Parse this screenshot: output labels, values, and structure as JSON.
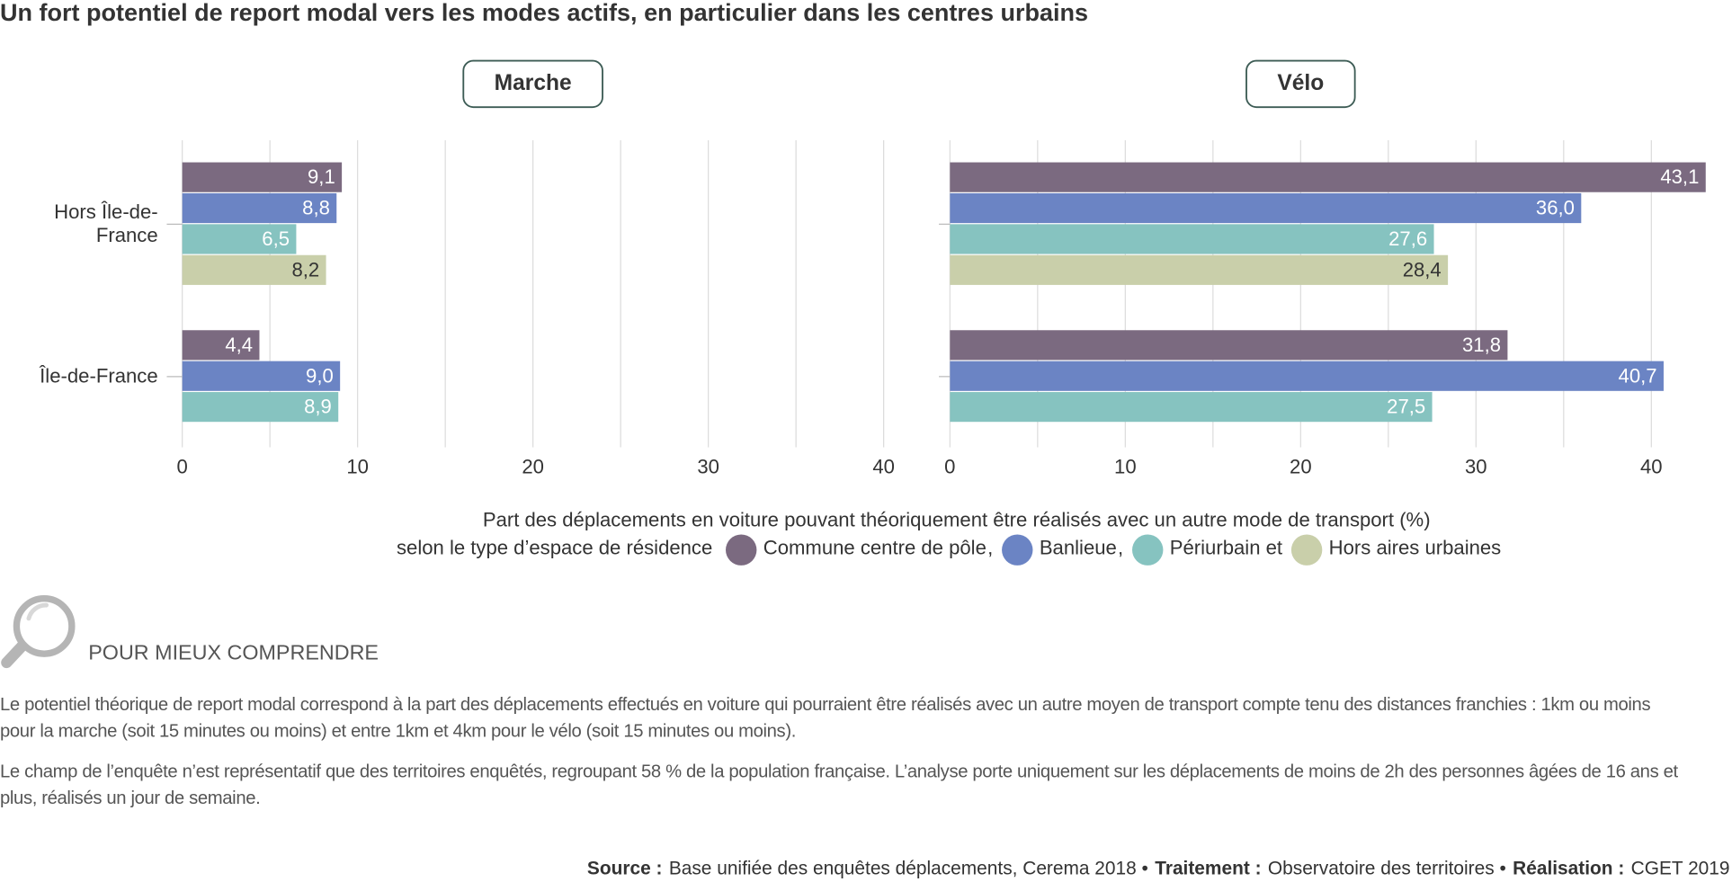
{
  "title": "Un fort potentiel de report modal vers les modes actifs, en particulier dans les centres urbains",
  "chart_data": [
    {
      "type": "bar",
      "orientation": "horizontal",
      "panel_title": "Marche",
      "categories": [
        "Hors Île-de-France",
        "Île-de-France"
      ],
      "series": [
        {
          "name": "Commune centre de pôle",
          "color": "#7b6a80",
          "values": [
            9.1,
            4.4
          ],
          "value_labels": [
            "9,1",
            "4,4"
          ]
        },
        {
          "name": "Banlieue",
          "color": "#6b84c4",
          "values": [
            8.8,
            9.0
          ],
          "value_labels": [
            "8,8",
            "9,0"
          ]
        },
        {
          "name": "Périurbain",
          "color": "#86c3c0",
          "values": [
            6.5,
            8.9
          ],
          "value_labels": [
            "6,5",
            "8,9"
          ]
        },
        {
          "name": "Hors aires urbaines",
          "color": "#c9cfaa",
          "values": [
            8.2,
            null
          ],
          "value_labels": [
            "8,2",
            null
          ]
        }
      ],
      "xlim": [
        0,
        40
      ],
      "xticks": [
        0,
        10,
        20,
        30,
        40
      ],
      "xminor": [
        5,
        15,
        25,
        35
      ],
      "grid": true
    },
    {
      "type": "bar",
      "orientation": "horizontal",
      "panel_title": "Vélo",
      "categories": [
        "Hors Île-de-France",
        "Île-de-France"
      ],
      "series": [
        {
          "name": "Commune centre de pôle",
          "color": "#7b6a80",
          "values": [
            43.1,
            31.8
          ],
          "value_labels": [
            "43,1",
            "31,8"
          ]
        },
        {
          "name": "Banlieue",
          "color": "#6b84c4",
          "values": [
            36.0,
            40.7
          ],
          "value_labels": [
            "36,0",
            "40,7"
          ]
        },
        {
          "name": "Périurbain",
          "color": "#86c3c0",
          "values": [
            27.6,
            27.5
          ],
          "value_labels": [
            "27,6",
            "27,5"
          ]
        },
        {
          "name": "Hors aires urbaines",
          "color": "#c9cfaa",
          "values": [
            28.4,
            null
          ],
          "value_labels": [
            "28,4",
            null
          ]
        }
      ],
      "xlim": [
        0,
        43.2
      ],
      "xticks": [
        0,
        10,
        20,
        30,
        40
      ],
      "xminor": [
        5,
        15,
        25,
        35
      ],
      "grid": true
    }
  ],
  "axis_title": "Part des déplacements en voiture pouvant théoriquement être réalisés avec un autre mode de transport (%)",
  "legend": {
    "prefix": "selon le type d’espace de résidence",
    "separators": [
      ",",
      ",",
      "et"
    ]
  },
  "note": {
    "heading": "POUR MIEUX COMPRENDRE",
    "paragraphs": [
      "Le potentiel théorique de report modal correspond à la part des déplacements effectués en voiture qui pourraient être réalisés avec un autre moyen de transport compte tenu des distances franchies : 1km ou moins pour la marche (soit 15 minutes ou moins) et entre 1km et 4km pour le vélo (soit 15 minutes ou moins).",
      "Le champ de l’enquête n’est représentatif que des territoires enquêtés, regroupant 58 % de la population française. L’analyse porte uniquement sur les déplacements de moins de 2h des personnes âgées de 16 ans et plus, réalisés un jour de semaine."
    ]
  },
  "source": [
    {
      "label": "Source :",
      "text": "Base unifiée des enquêtes déplacements, Cerema 2018 •"
    },
    {
      "label": "Traitement :",
      "text": "Observatoire des territoires •"
    },
    {
      "label": "Réalisation :",
      "text": "CGET 2019"
    }
  ]
}
